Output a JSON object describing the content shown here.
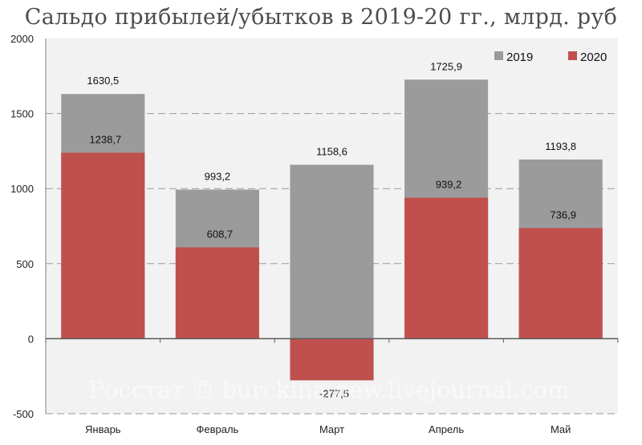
{
  "chart_data": {
    "type": "bar",
    "title": "Сальдо прибылей/убытков в 2019-20 гг., млрд. руб",
    "categories": [
      "Январь",
      "Февраль",
      "Март",
      "Апрель",
      "Май"
    ],
    "series": [
      {
        "name": "2019",
        "values": [
          1630.5,
          993.2,
          1158.6,
          1725.9,
          1193.8
        ],
        "labels": [
          "1630,5",
          "993,2",
          "1158,6",
          "1725,9",
          "1193,8"
        ],
        "color": "#9b9b9b"
      },
      {
        "name": "2020",
        "values": [
          1238.7,
          608.7,
          -277.5,
          939.2,
          736.9
        ],
        "labels": [
          "1238,7",
          "608,7",
          "-277,5",
          "939,2",
          "736,9"
        ],
        "color": "#c0504d"
      }
    ],
    "ylim": [
      -500,
      2000
    ],
    "yticks": [
      -500,
      0,
      500,
      1000,
      1500,
      2000
    ],
    "grid": true,
    "legend": "top-right",
    "plot_background": "#f2f2f2",
    "watermark": "Росстат © burckina-new.livejournal.com"
  }
}
